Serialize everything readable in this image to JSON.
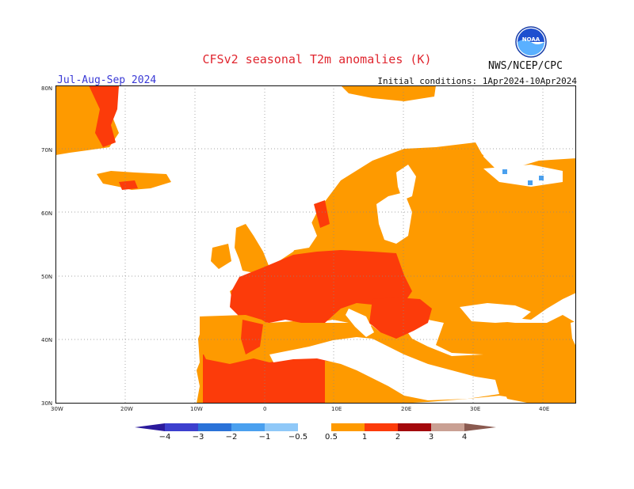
{
  "header": {
    "title": "CFSv2 seasonal T2m anomalies (K)",
    "season": "Jul-Aug-Sep 2024",
    "initial_conditions": "Initial conditions: 1Apr2024-10Apr2024",
    "agency": "NWS/NCEP/CPC",
    "logo_text": "NOAA"
  },
  "map": {
    "lon_range": [
      -30,
      45
    ],
    "lat_range": [
      30,
      80
    ],
    "lat_ticks": [
      "30N",
      "40N",
      "50N",
      "60N",
      "70N",
      "80N"
    ],
    "lon_ticks": [
      "30W",
      "20W",
      "10W",
      "0",
      "10E",
      "20E",
      "30E",
      "40E"
    ]
  },
  "legend": {
    "labels": [
      "−4",
      "−3",
      "−2",
      "−1",
      "−0.5",
      "0.5",
      "1",
      "2",
      "3",
      "4"
    ],
    "colors": [
      "#2b1a9c",
      "#3c3fce",
      "#2a72d8",
      "#4aa0ef",
      "#8fc8f8",
      "#ffffff",
      "#fe9a00",
      "#fc3b0a",
      "#a3080c",
      "#c9a093",
      "#8a5a50"
    ]
  }
}
